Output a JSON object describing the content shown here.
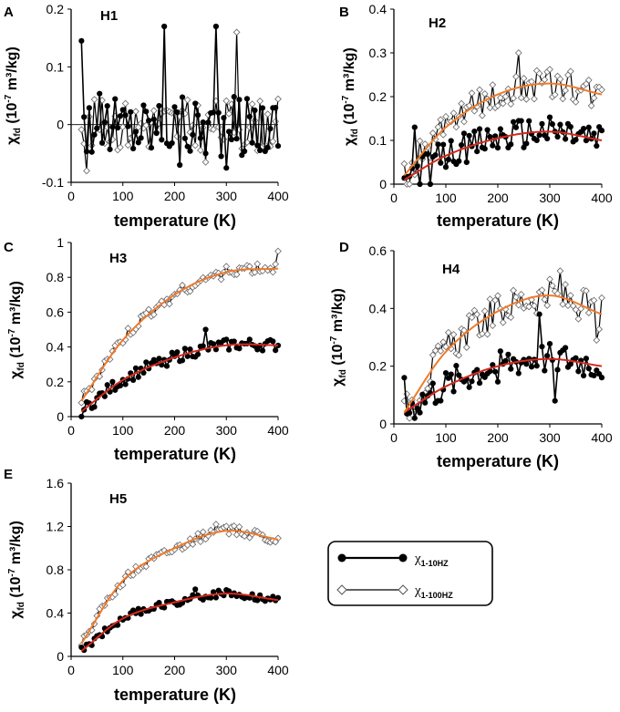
{
  "legend": {
    "items": [
      {
        "label": "χ",
        "sub": "1-10HZ",
        "marker": "filled-circle",
        "color": "#000000"
      },
      {
        "label": "χ",
        "sub": "1-100HZ",
        "marker": "open-diamond",
        "color": "#000000"
      }
    ]
  },
  "colors": {
    "fit_100hz": "#f07a2a",
    "fit_10hz": "#d42a1e",
    "marker_fill_open": "#ffffff",
    "line": "#000000"
  },
  "chart_data": [
    {
      "id": "A",
      "title": "H1",
      "type": "line",
      "xlabel": "temperature (K)",
      "ylabel_main": "χ",
      "ylabel_sub": "fd",
      "ylabel_rest": " (10",
      "ylabel_exp": "-7",
      "ylabel_tail": " m³/kg)",
      "xlim": [
        0,
        400
      ],
      "ylim": [
        -0.1,
        0.2
      ],
      "xticks": [
        0,
        100,
        200,
        300,
        400
      ],
      "xtick_labels": [
        "0",
        "100",
        "200",
        "300",
        "400"
      ],
      "yticks": [
        -0.1,
        0,
        0.1,
        0.2
      ],
      "ytick_labels": [
        "-0.1",
        "0",
        "0.1",
        "0.2"
      ],
      "zero_line": true,
      "series": [
        {
          "name": "χ1-10HZ",
          "marker": "filled-circle",
          "amp": 0.055,
          "base": [
            0.0,
            0.0,
            0.0,
            0.0,
            0.0
          ],
          "spikes": [
            [
              20,
              0.145
            ],
            [
              180,
              0.17
            ],
            [
              280,
              0.17
            ],
            [
              300,
              -0.075
            ],
            [
              210,
              -0.07
            ]
          ]
        },
        {
          "name": "χ1-100HZ",
          "marker": "open-diamond",
          "amp": 0.045,
          "base": [
            0.0,
            0.0,
            0.0,
            0.0,
            0.0
          ],
          "spikes": [
            [
              320,
              0.16
            ],
            [
              30,
              -0.08
            ],
            [
              260,
              -0.065
            ]
          ]
        }
      ]
    },
    {
      "id": "B",
      "title": "H2",
      "type": "line",
      "xlabel": "temperature (K)",
      "ylabel_main": "χ",
      "ylabel_sub": "fd",
      "ylabel_rest": " (10",
      "ylabel_exp": "-7",
      "ylabel_tail": " m³/kg)",
      "xlim": [
        0,
        400
      ],
      "ylim": [
        0,
        0.4
      ],
      "xticks": [
        0,
        100,
        200,
        300,
        400
      ],
      "xtick_labels": [
        "0",
        "100",
        "200",
        "300",
        "400"
      ],
      "yticks": [
        0,
        0.1,
        0.2,
        0.3,
        0.4
      ],
      "ytick_labels": [
        "0",
        "0.1",
        "0.2",
        "0.3",
        "0.4"
      ],
      "series": [
        {
          "name": "χ1-10HZ",
          "marker": "filled-circle",
          "amp": 0.035,
          "fit": [
            [
              20,
              0.01
            ],
            [
              100,
              0.065
            ],
            [
              200,
              0.105
            ],
            [
              300,
              0.12
            ],
            [
              400,
              0.1
            ]
          ],
          "spikes": [
            [
              40,
              0.13
            ],
            [
              70,
              -0.02
            ]
          ]
        },
        {
          "name": "χ1-100HZ",
          "marker": "open-diamond",
          "amp": 0.035,
          "fit": [
            [
              20,
              0.02
            ],
            [
              100,
              0.13
            ],
            [
              200,
              0.205
            ],
            [
              300,
              0.23
            ],
            [
              400,
              0.205
            ]
          ],
          "spikes": [
            [
              240,
              0.3
            ],
            [
              30,
              -0.01
            ]
          ]
        }
      ]
    },
    {
      "id": "C",
      "title": "H3",
      "type": "line",
      "xlabel": "temperature (K)",
      "ylabel_main": "χ",
      "ylabel_sub": "fd",
      "ylabel_rest": " (10",
      "ylabel_exp": "-7",
      "ylabel_tail": " m³/kg)",
      "xlim": [
        0,
        400
      ],
      "ylim": [
        0,
        1
      ],
      "xticks": [
        0,
        100,
        200,
        300,
        400
      ],
      "xtick_labels": [
        "0",
        "100",
        "200",
        "300",
        "400"
      ],
      "yticks": [
        0,
        0.2,
        0.4,
        0.6,
        0.8,
        1
      ],
      "ytick_labels": [
        "0",
        "0.2",
        "0.4",
        "0.6",
        "0.8",
        "1"
      ],
      "series": [
        {
          "name": "χ1-10HZ",
          "marker": "filled-circle",
          "amp": 0.035,
          "fit": [
            [
              20,
              0.03
            ],
            [
              100,
              0.21
            ],
            [
              200,
              0.34
            ],
            [
              300,
              0.41
            ],
            [
              400,
              0.41
            ]
          ],
          "spikes": [
            [
              260,
              0.5
            ]
          ]
        },
        {
          "name": "χ1-100HZ",
          "marker": "open-diamond",
          "amp": 0.035,
          "fit": [
            [
              20,
              0.09
            ],
            [
              100,
              0.44
            ],
            [
              200,
              0.7
            ],
            [
              300,
              0.83
            ],
            [
              400,
              0.85
            ]
          ],
          "spikes": [
            [
              400,
              0.95
            ]
          ]
        }
      ]
    },
    {
      "id": "D",
      "title": "H4",
      "type": "line",
      "xlabel": "temperature (K)",
      "ylabel_main": "χ",
      "ylabel_sub": "fd",
      "ylabel_rest": " (10",
      "ylabel_exp": "-7",
      "ylabel_tail": " m³/kg)",
      "xlim": [
        0,
        400
      ],
      "ylim": [
        0,
        0.6
      ],
      "xticks": [
        0,
        100,
        200,
        300,
        400
      ],
      "xtick_labels": [
        "0",
        "100",
        "200",
        "300",
        "400"
      ],
      "yticks": [
        0,
        0.2,
        0.4,
        0.6
      ],
      "ytick_labels": [
        "0",
        "0.2",
        "0.4",
        "0.6"
      ],
      "series": [
        {
          "name": "χ1-10HZ",
          "marker": "filled-circle",
          "amp": 0.055,
          "fit": [
            [
              20,
              0.04
            ],
            [
              100,
              0.13
            ],
            [
              200,
              0.2
            ],
            [
              300,
              0.225
            ],
            [
              400,
              0.2
            ]
          ],
          "spikes": [
            [
              20,
              0.16
            ],
            [
              40,
              0.02
            ],
            [
              310,
              0.08
            ],
            [
              280,
              0.38
            ]
          ]
        },
        {
          "name": "χ1-100HZ",
          "marker": "open-diamond",
          "amp": 0.06,
          "fit": [
            [
              20,
              0.04
            ],
            [
              100,
              0.25
            ],
            [
              200,
              0.39
            ],
            [
              300,
              0.445
            ],
            [
              400,
              0.38
            ]
          ],
          "spikes": [
            [
              320,
              0.53
            ],
            [
              390,
              0.29
            ]
          ]
        }
      ]
    },
    {
      "id": "E",
      "title": "H5",
      "type": "line",
      "xlabel": "temperature (K)",
      "ylabel_main": "χ",
      "ylabel_sub": "fd",
      "ylabel_rest": " (10",
      "ylabel_exp": "-7",
      "ylabel_tail": " m³/kg)",
      "xlim": [
        0,
        400
      ],
      "ylim": [
        0,
        1.6
      ],
      "xticks": [
        0,
        100,
        200,
        300,
        400
      ],
      "xtick_labels": [
        "0",
        "100",
        "200",
        "300",
        "400"
      ],
      "yticks": [
        0,
        0.4,
        0.8,
        1.2,
        1.6
      ],
      "ytick_labels": [
        "0",
        "0.4",
        "0.8",
        "1.2",
        "1.6"
      ],
      "series": [
        {
          "name": "χ1-10HZ",
          "marker": "filled-circle",
          "amp": 0.035,
          "fit": [
            [
              20,
              0.05
            ],
            [
              100,
              0.35
            ],
            [
              200,
              0.5
            ],
            [
              300,
              0.58
            ],
            [
              400,
              0.52
            ]
          ],
          "spikes": [
            [
              240,
              0.62
            ]
          ]
        },
        {
          "name": "χ1-100HZ",
          "marker": "open-diamond",
          "amp": 0.045,
          "fit": [
            [
              20,
              0.12
            ],
            [
              100,
              0.7
            ],
            [
              200,
              1.0
            ],
            [
              300,
              1.16
            ],
            [
              400,
              1.08
            ]
          ],
          "spikes": [
            [
              280,
              1.22
            ]
          ]
        }
      ]
    }
  ]
}
